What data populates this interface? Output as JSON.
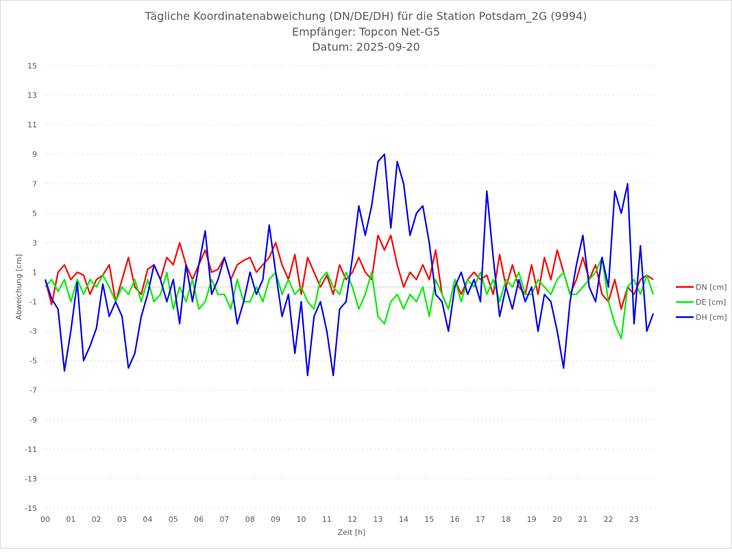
{
  "chart_data": {
    "type": "line",
    "title": [
      "Tägliche Koordinatenabweichung (DN/DE/DH) für die Station Potsdam_2G (9994)",
      "Empfänger: Topcon Net-G5",
      "Datum: 2025-09-20"
    ],
    "xlabel": "Zeit [h]",
    "ylabel": "Abweichung [cm]",
    "xlim": [
      0,
      24
    ],
    "ylim": [
      -15,
      15
    ],
    "x_step_hours": 0.25,
    "x_ticks": [
      "00",
      "01",
      "02",
      "03",
      "04",
      "05",
      "06",
      "07",
      "08",
      "09",
      "10",
      "11",
      "12",
      "13",
      "14",
      "15",
      "16",
      "17",
      "18",
      "19",
      "20",
      "21",
      "22",
      "23"
    ],
    "y_ticks": [
      15,
      13,
      11,
      9,
      7,
      5,
      3,
      1,
      -1,
      -3,
      -5,
      -7,
      -9,
      -11,
      -13,
      -15
    ],
    "grid": true,
    "legend_position": "right",
    "series": [
      {
        "name": "DN [cm]",
        "color": "#ff0000",
        "values": [
          0.5,
          -1.2,
          1,
          1.5,
          0.5,
          1,
          0.8,
          -0.5,
          0.5,
          0.8,
          1.5,
          -1,
          0.5,
          2,
          0,
          -0.5,
          1.2,
          1.5,
          0.5,
          2,
          1.5,
          3,
          1.5,
          0.5,
          1.5,
          2.5,
          1,
          1.2,
          2,
          0.5,
          1.5,
          1.8,
          2,
          1,
          1.5,
          2,
          3,
          1.5,
          0.5,
          2.2,
          -0.5,
          2,
          1,
          0,
          0.8,
          -0.5,
          1.5,
          0.5,
          1,
          2,
          1,
          0.5,
          3.5,
          2.5,
          3.5,
          1.5,
          0,
          1,
          0.5,
          1.5,
          0.5,
          2.5,
          -0.5,
          -1.5,
          0.5,
          -0.5,
          0.5,
          1,
          0.5,
          0.8,
          -0.5,
          2.2,
          0,
          1.5,
          0,
          -0.5,
          1.5,
          -0.5,
          2,
          0.5,
          2.5,
          1,
          -0.5,
          0.5,
          2,
          0.5,
          1.5,
          -0.5,
          -1,
          0.5,
          -1.5,
          0,
          -0.5,
          0.5,
          0.8,
          0.5
        ]
      },
      {
        "name": "DE [cm]",
        "color": "#00ee00",
        "values": [
          0,
          0.5,
          -0.3,
          0.5,
          -1,
          0.5,
          -0.5,
          0.5,
          0,
          0.8,
          0,
          -1,
          0,
          -0.5,
          0.5,
          -1,
          0.5,
          -1,
          -0.5,
          1,
          -1.5,
          0,
          -1,
          0.5,
          -1.5,
          -1,
          0.5,
          -0.5,
          -0.5,
          -1.5,
          0.5,
          -1,
          -1,
          0,
          -1,
          0.5,
          1,
          -0.5,
          0.5,
          -0.5,
          0,
          -1,
          -1.5,
          0.5,
          1,
          0,
          -0.5,
          1,
          0,
          -1.5,
          -0.5,
          1,
          -2,
          -2.5,
          -1,
          -0.5,
          -1.5,
          -0.5,
          -1,
          0,
          -2,
          0.5,
          -0.5,
          -1.5,
          0.5,
          -1,
          0.5,
          0,
          1,
          -0.5,
          0.5,
          -1,
          0.5,
          0,
          1,
          -0.5,
          -0.5,
          0.5,
          0,
          -0.5,
          0.5,
          1,
          -0.5,
          -0.5,
          0,
          0.5,
          1,
          2,
          -1,
          -2.5,
          -3.5,
          0,
          0.5,
          -0.5,
          0.8,
          -0.5
        ]
      },
      {
        "name": "DH [cm]",
        "color": "#0000ee",
        "values": [
          0.5,
          -0.8,
          -1.5,
          -5.7,
          -3,
          0.3,
          -5,
          -4,
          -2.8,
          0.2,
          -2,
          -1,
          -2,
          -5.5,
          -4.5,
          -2,
          -0.5,
          1.5,
          0.5,
          -1,
          0.5,
          -2.5,
          1.5,
          -1,
          1.5,
          3.8,
          -0.5,
          0.5,
          2,
          0.5,
          -2.5,
          -1,
          1,
          -0.5,
          0.5,
          4.2,
          1,
          -2,
          -0.5,
          -4.5,
          -1,
          -6,
          -2,
          -1,
          -3,
          -6,
          -1.5,
          -1,
          2,
          5.5,
          3.5,
          5.5,
          8.5,
          9,
          4,
          8.5,
          7,
          3.5,
          5,
          5.5,
          3,
          -0.5,
          -1,
          -3,
          0,
          1,
          -0.5,
          0.5,
          -1,
          6.5,
          2,
          -2,
          0,
          -1.5,
          0.5,
          -1,
          0,
          -3,
          -0.5,
          -1,
          -3,
          -5.5,
          -1,
          1.5,
          3.5,
          0,
          -1,
          2,
          0,
          6.5,
          5,
          7,
          -2.5,
          2.8,
          -3,
          -1.8
        ]
      }
    ]
  }
}
